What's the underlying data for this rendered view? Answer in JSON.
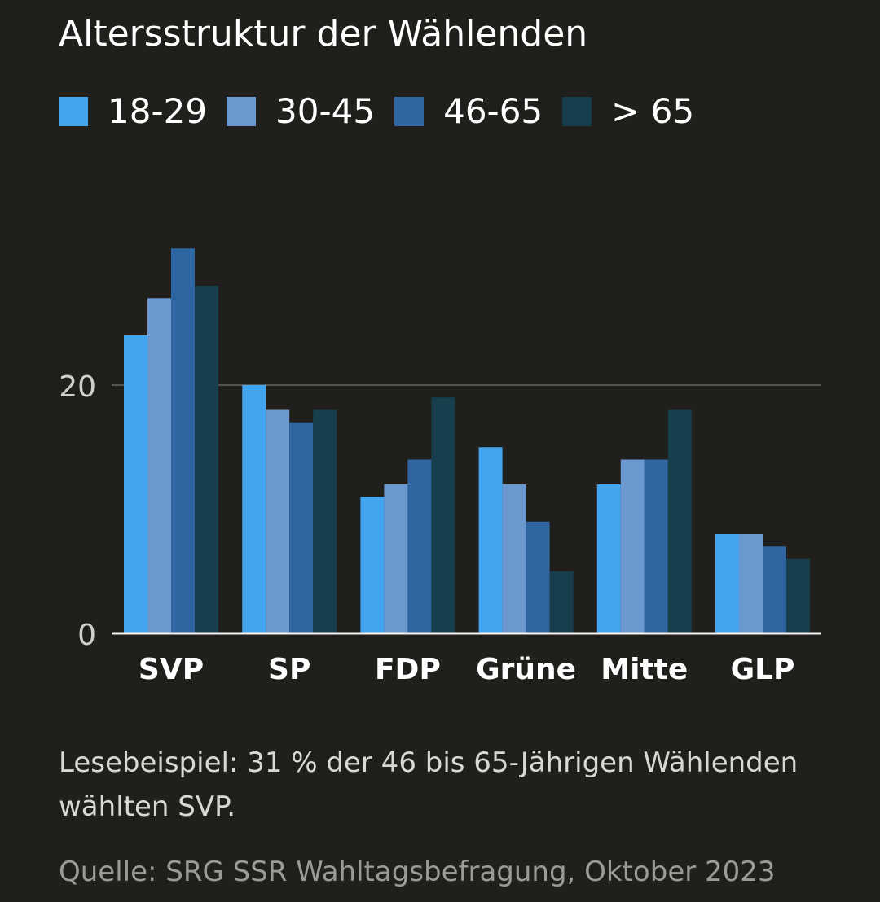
{
  "chart_data": {
    "type": "bar",
    "title": "Altersstruktur der Wählenden",
    "categories": [
      "SVP",
      "SP",
      "FDP",
      "Grüne",
      "Mitte",
      "GLP"
    ],
    "series": [
      {
        "name": "18-29",
        "color": "#42a5f0",
        "values": [
          24,
          20,
          11,
          15,
          12,
          8
        ]
      },
      {
        "name": "30-45",
        "color": "#6a98cf",
        "values": [
          27,
          18,
          12,
          12,
          14,
          8
        ]
      },
      {
        "name": "46-65",
        "color": "#2f65a1",
        "values": [
          31,
          17,
          14,
          9,
          14,
          7
        ]
      },
      {
        "name": "> 65",
        "color": "#163e4d",
        "values": [
          28,
          18,
          19,
          5,
          18,
          6
        ]
      }
    ],
    "yticks": [
      {
        "value": 0,
        "label": "0"
      },
      {
        "value": 20,
        "label": "20"
      }
    ],
    "xlabel": "",
    "ylabel": "",
    "ylim": [
      0,
      31
    ],
    "grid": true
  },
  "note": "Lesebeispiel: 31 % der 46 bis 65-Jährigen Wählenden wählten SVP.",
  "source": "Quelle: SRG SSR Wahltagsbefragung, Oktober 2023",
  "colors": {
    "background": "#211f1c",
    "gridline": "#55534f",
    "baseline": "#f2f2f2",
    "tick_text": "#cfcfcc"
  }
}
